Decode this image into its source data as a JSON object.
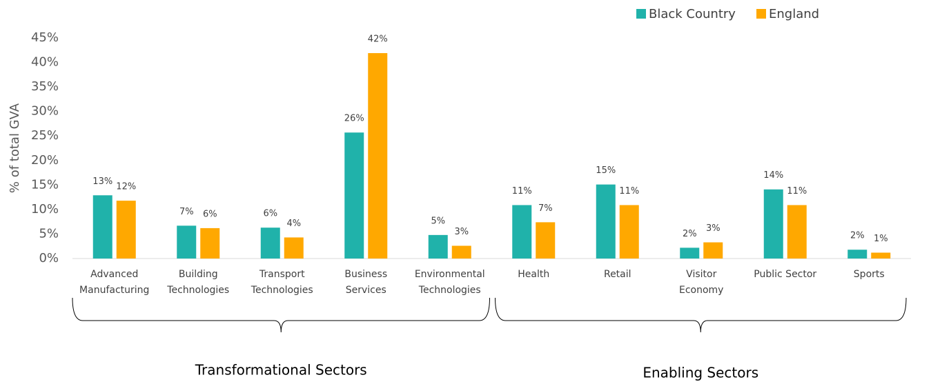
{
  "chart_data": {
    "type": "bar",
    "ylabel": "% of total GVA",
    "categories": [
      "Advanced Manufacturing",
      "Building Technologies",
      "Transport Technologies",
      "Business Services",
      "Environmental Technologies",
      "Health",
      "Retail",
      "Visitor Economy",
      "Public Sector",
      "Sports"
    ],
    "series": [
      {
        "name": "Black Country",
        "color": "#20b2aa",
        "values": [
          12.9,
          6.7,
          6.3,
          25.7,
          4.8,
          10.9,
          15.1,
          2.2,
          14.1,
          1.8
        ],
        "value_labels": [
          "13%",
          "7%",
          "6%",
          "26%",
          "5%",
          "11%",
          "15%",
          "2%",
          "14%",
          "2%"
        ]
      },
      {
        "name": "England",
        "color": "#ffa800",
        "values": [
          11.8,
          6.2,
          4.3,
          41.9,
          2.6,
          7.4,
          10.9,
          3.3,
          10.9,
          1.2
        ],
        "value_labels": [
          "12%",
          "6%",
          "4%",
          "42%",
          "3%",
          "7%",
          "11%",
          "3%",
          "11%",
          "1%"
        ]
      }
    ],
    "groups": [
      "Transformational Sectors",
      "Enabling Sectors"
    ],
    "ylim": [
      0,
      45
    ],
    "yticks": [
      {
        "value": 0,
        "label": "0%"
      },
      {
        "value": 5,
        "label": "5%"
      },
      {
        "value": 10,
        "label": "10%"
      },
      {
        "value": 15,
        "label": "15%"
      },
      {
        "value": 20,
        "label": "20%"
      },
      {
        "value": 25,
        "label": "25%"
      },
      {
        "value": 30,
        "label": "30%"
      },
      {
        "value": 35,
        "label": "35%"
      },
      {
        "value": 40,
        "label": "40%"
      },
      {
        "value": 45,
        "label": "45%"
      }
    ],
    "legend": "top-right"
  }
}
